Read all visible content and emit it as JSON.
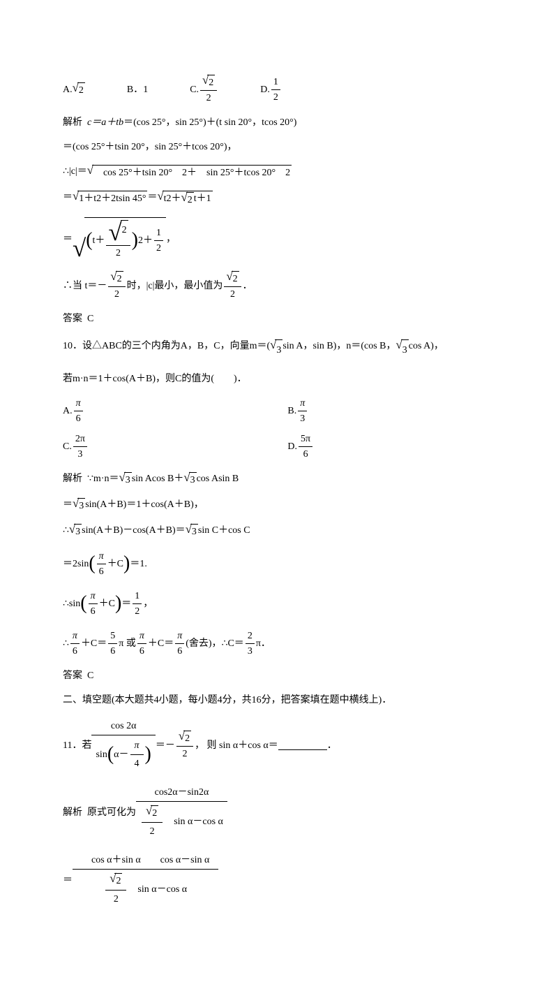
{
  "q9": {
    "options": {
      "A_prefix": "A.",
      "A_val_sqrt": "2",
      "B_prefix": "B．",
      "B_val": "1",
      "C_prefix": "C.",
      "C_num_sqrt": "2",
      "C_den": "2",
      "D_prefix": "D.",
      "D_num": "1",
      "D_den": "2"
    },
    "sol": {
      "label": "解析",
      "line1_head": "c＝a＋tb",
      "line1_tail": "＝(cos 25°，sin 25°)＋(t sin 20°，tcos 20°)",
      "line2": "＝(cos 25°＋tsin 20°，sin 25°＋tcos 20°)，",
      "line3_pre": "∴|c|＝",
      "line3_rad": "　cos 25°＋tsin 20°　2＋　sin 25°＋tcos 20°　2",
      "line4_pre": "＝",
      "line4_rad1": "1＋t2＋2tsin 45°",
      "line4_mid": "＝",
      "line4_rad2": "t2＋",
      "line4_rad2_sqrt": "2",
      "line4_rad2_tail": "t＋1",
      "line5_pre": "＝",
      "line5_inner_t": "t＋",
      "line5_inner_num_sqrt": "2",
      "line5_inner_den": "2",
      "line5_sq": "2＋",
      "line5_plus_num": "1",
      "line5_plus_den": "2",
      "line5_tail": "，",
      "line6_pre": "∴当 t＝－",
      "line6_num_sqrt": "2",
      "line6_den": "2",
      "line6_mid": "时，|c|最小，最小值为",
      "line6_num2_sqrt": "2",
      "line6_den2": "2",
      "line6_tail": "．"
    },
    "ans_label": "答案",
    "ans": "C"
  },
  "q10": {
    "num": "10．",
    "stem1": "设△ABC的三个内角为A，B，C，向量m＝(",
    "stem_sqrt1": "3",
    "stem2": "sin A，sin B)，n＝(cos B，",
    "stem_sqrt2": "3",
    "stem3": "cos A)，",
    "stem_line2": "若m·n＝1＋cos(A＋B)，则C的值为(　　)．",
    "options": {
      "A_prefix": "A.",
      "A_num": "π",
      "A_den": "6",
      "B_prefix": "B.",
      "B_num": "π",
      "B_den": "3",
      "C_prefix": "C.",
      "C_num": "2π",
      "C_den": "3",
      "D_prefix": "D.",
      "D_num": "5π",
      "D_den": "6"
    },
    "sol": {
      "label": "解析",
      "l1_pre": "∵m·n＝",
      "l1_s1": "3",
      "l1_mid": "sin Acos B＋",
      "l1_s2": "3",
      "l1_tail": "cos Asin B",
      "l2_pre": "＝",
      "l2_s": "3",
      "l2_tail": "sin(A＋B)＝1＋cos(A＋B)，",
      "l3_pre": "∴",
      "l3_s1": "3",
      "l3_mid": "sin(A＋B)－cos(A＋B)＝",
      "l3_s2": "3",
      "l3_tail": "sin C＋cos C",
      "l4_pre": "＝2sin",
      "l4_num": "π",
      "l4_den": "6",
      "l4_plus": "＋C",
      "l4_tail": "＝1.",
      "l5_pre": "∴sin",
      "l5_num": "π",
      "l5_den": "6",
      "l5_plus": "＋C",
      "l5_eq": "＝",
      "l5_rnum": "1",
      "l5_rden": "2",
      "l5_tail": "，",
      "l6_pre": "∴",
      "l6_f1n": "π",
      "l6_f1d": "6",
      "l6_mid1": "＋C＝",
      "l6_f2n": "5",
      "l6_f2d": "6",
      "l6_pi1": "π 或",
      "l6_f3n": "π",
      "l6_f3d": "6",
      "l6_mid2": "＋C＝",
      "l6_f4n": "π",
      "l6_f4d": "6",
      "l6_drop": "(舍去)，",
      "l6_so": "∴C＝",
      "l6_f5n": "2",
      "l6_f5d": "3",
      "l6_pi2": "π．"
    },
    "ans_label": "答案",
    "ans": "C"
  },
  "section2": "二、填空题(本大题共4小题，每小题4分，共16分，把答案填在题中横线上)．",
  "q11": {
    "num": "11．",
    "stem_pre": "若",
    "stem_top": "cos 2α",
    "stem_bot_pre": "sin",
    "stem_bot_in": "α－",
    "stem_bot_num": "π",
    "stem_bot_den": "4",
    "stem_eq": "＝－",
    "stem_rnum_sqrt": "2",
    "stem_rden": "2",
    "stem_mid": "， 则 sin α＋cos α＝",
    "stem_tail": "．",
    "sol_label": "解析",
    "sol_pre": "原式可化为",
    "sol_top": "cos2α－sin2α",
    "sol_bot_num_sqrt": "2",
    "sol_bot_den_2": "2",
    "sol_bot_tail": "　sin α－cos α",
    "sol2_pre": "＝",
    "sol2_top": "　cos α＋sin α　　cos α－sin α　",
    "sol2_bot_num_sqrt": "2",
    "sol2_bot_den_2": "2",
    "sol2_bot_tail": "　sin α－cos α"
  }
}
